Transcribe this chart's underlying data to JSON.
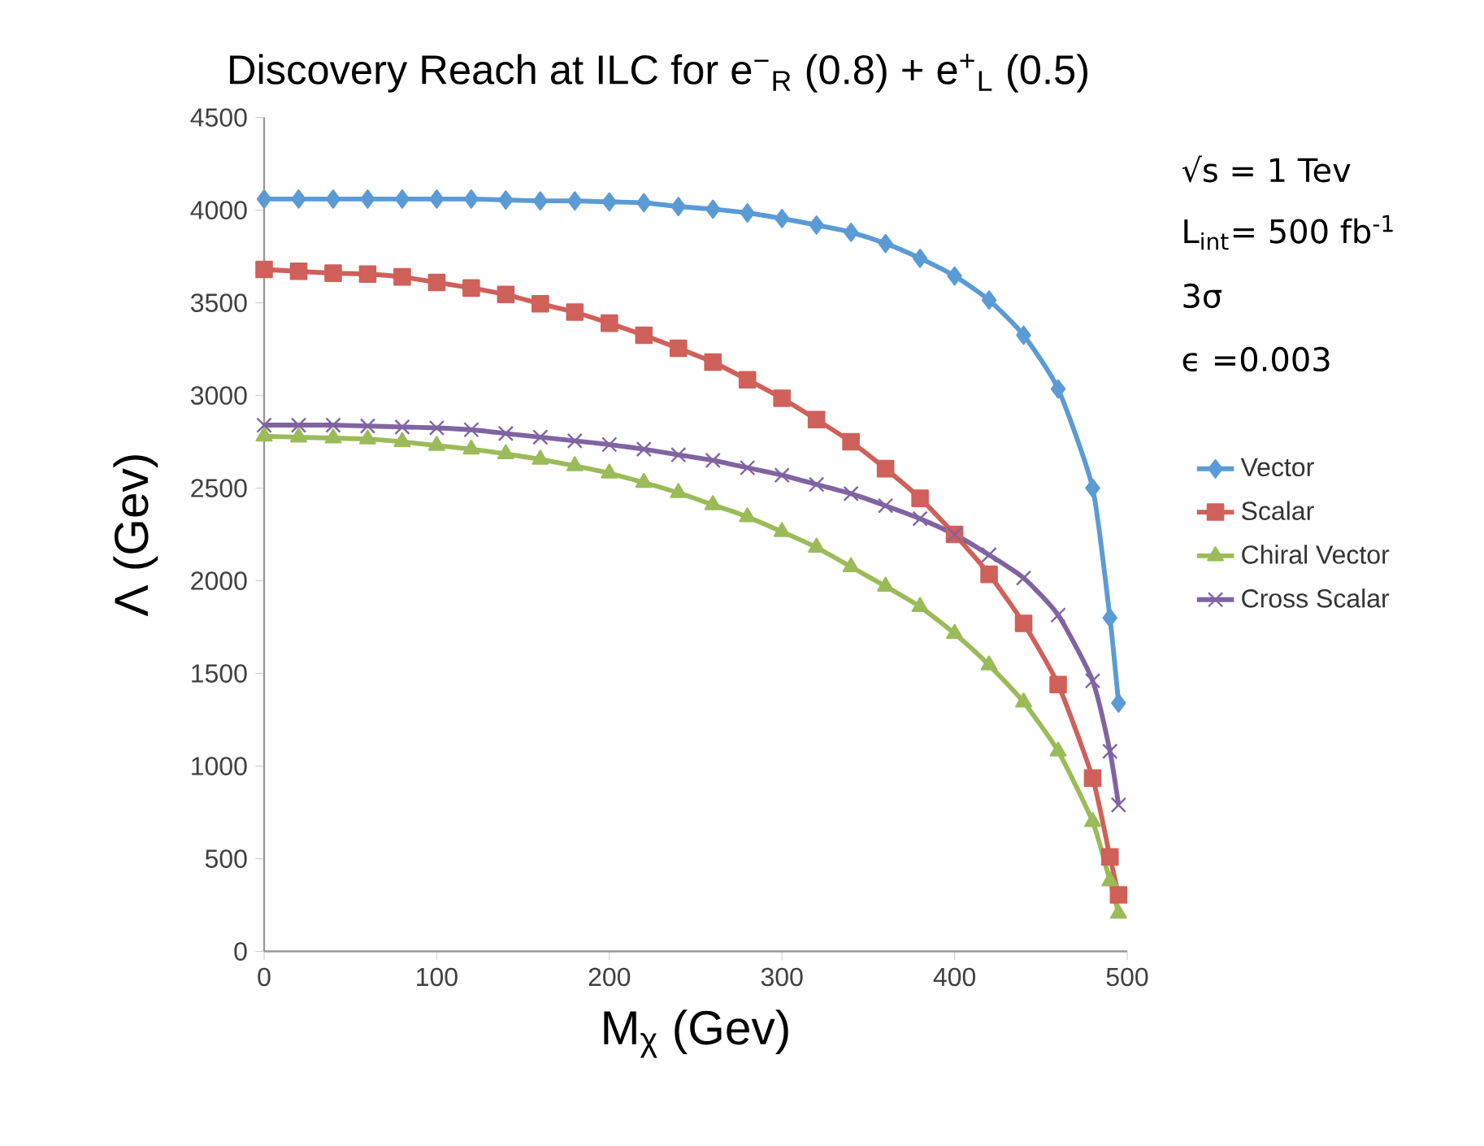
{
  "chart_data": {
    "type": "line",
    "title": "Discovery Reach at ILC for e$^{−}$$_{R}$ (0.8) + e$^{+}$$_{L}$ (0.5)",
    "xlabel": "M$_{χ}$ (Gev)",
    "ylabel": "Λ (Gev)",
    "annotations": [
      "√s = 1 Tev",
      "L$_{int}$= 500 fb$^{-1}$",
      "3σ",
      "ϵ =0.003"
    ],
    "x": [
      0,
      20,
      40,
      60,
      80,
      100,
      120,
      140,
      160,
      180,
      200,
      220,
      240,
      260,
      280,
      300,
      320,
      340,
      360,
      380,
      400,
      420,
      440,
      460,
      480,
      490,
      495
    ],
    "xlim": [
      0,
      500
    ],
    "xticks": [
      0,
      100,
      200,
      300,
      400,
      500
    ],
    "ylim": [
      0,
      4500
    ],
    "yticks": [
      0,
      500,
      1000,
      1500,
      2000,
      2500,
      3000,
      3500,
      4000,
      4500
    ],
    "grid": false,
    "legend": "right",
    "series": [
      {
        "name": "Vector",
        "color": "#5b9bd5",
        "marker": "diamond",
        "values": [
          4060,
          4060,
          4060,
          4060,
          4060,
          4060,
          4060,
          4055,
          4050,
          4050,
          4045,
          4040,
          4020,
          4005,
          3985,
          3955,
          3920,
          3880,
          3820,
          3740,
          3645,
          3515,
          3325,
          3035,
          2500,
          1800,
          1340
        ]
      },
      {
        "name": "Scalar",
        "color": "#d0605a",
        "marker": "square",
        "values": [
          3680,
          3670,
          3660,
          3655,
          3640,
          3610,
          3580,
          3545,
          3495,
          3450,
          3390,
          3325,
          3255,
          3180,
          3085,
          2985,
          2870,
          2750,
          2605,
          2445,
          2250,
          2035,
          1770,
          1440,
          935,
          510,
          305
        ]
      },
      {
        "name": "Chiral Vector",
        "color": "#9bbb59",
        "marker": "triangle",
        "values": [
          2780,
          2775,
          2770,
          2765,
          2750,
          2730,
          2710,
          2685,
          2655,
          2620,
          2580,
          2530,
          2475,
          2410,
          2345,
          2265,
          2180,
          2075,
          1970,
          1860,
          1715,
          1545,
          1345,
          1080,
          700,
          380,
          205
        ]
      },
      {
        "name": "Cross Scalar",
        "color": "#8064a2",
        "marker": "cross",
        "values": [
          2840,
          2840,
          2840,
          2835,
          2830,
          2825,
          2815,
          2795,
          2775,
          2755,
          2735,
          2710,
          2680,
          2650,
          2610,
          2570,
          2520,
          2470,
          2405,
          2335,
          2250,
          2140,
          2015,
          1815,
          1460,
          1080,
          790
        ]
      }
    ]
  }
}
